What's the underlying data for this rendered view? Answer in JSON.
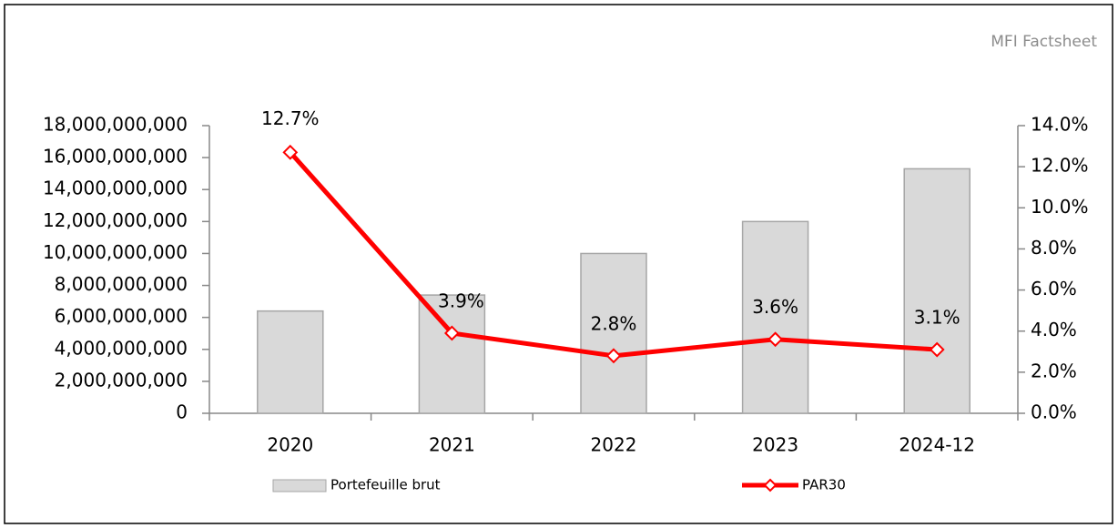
{
  "chart_data": {
    "type": "bar+line",
    "title": "MFI Factsheet",
    "categories": [
      "2020",
      "2021",
      "2022",
      "2023",
      "2024-12"
    ],
    "series": [
      {
        "name": "Portefeuille brut",
        "type": "bar",
        "color": "#d9d9d9",
        "axis": "y",
        "values": [
          6400000000,
          7400000000,
          10000000000,
          12000000000,
          15300000000
        ]
      },
      {
        "name": "PAR30",
        "type": "line",
        "color": "#ff0000",
        "axis": "y2",
        "values": [
          12.7,
          3.9,
          2.8,
          3.6,
          3.1
        ],
        "value_labels": [
          "12.7%",
          "3.9%",
          "2.8%",
          "3.6%",
          "3.1%"
        ]
      }
    ],
    "ylim": [
      0,
      18000000000
    ],
    "yticks": [
      0,
      {
        "value": 2000000000,
        "label": "2,000,000,000"
      },
      {
        "value": 4000000000,
        "label": "4,000,000,000"
      },
      {
        "value": 6000000000,
        "label": "6,000,000,000"
      },
      {
        "value": 8000000000,
        "label": "8,000,000,000"
      },
      {
        "value": 10000000000,
        "label": "10,000,000,000"
      },
      {
        "value": 12000000000,
        "label": "12,000,000,000"
      },
      {
        "value": 14000000000,
        "label": "14,000,000,000"
      },
      {
        "value": 16000000000,
        "label": "16,000,000,000"
      },
      {
        "value": 18000000000,
        "label": "18,000,000,000"
      }
    ],
    "y2lim": [
      0,
      14
    ],
    "y2ticks": [
      {
        "value": 0,
        "label": "0.0%"
      },
      {
        "value": 2,
        "label": "2.0%"
      },
      {
        "value": 4,
        "label": "4.0%"
      },
      {
        "value": 6,
        "label": "6.0%"
      },
      {
        "value": 8,
        "label": "8.0%"
      },
      {
        "value": 10,
        "label": "10.0%"
      },
      {
        "value": 12,
        "label": "12.0%"
      },
      {
        "value": 14,
        "label": "14.0%"
      }
    ],
    "legend": "bottom"
  }
}
